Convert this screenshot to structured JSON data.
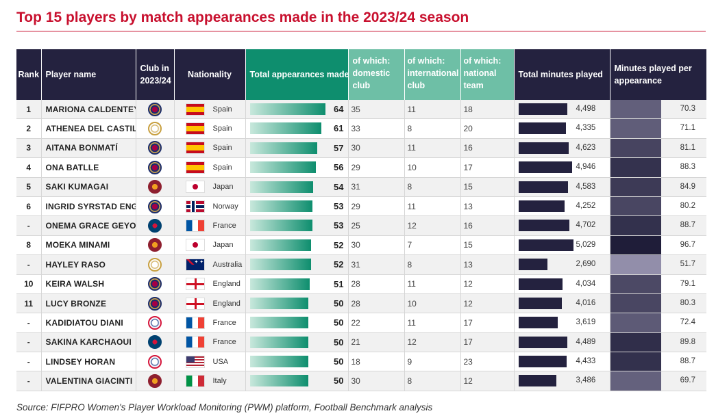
{
  "title": "Top 15 players by match appearances made in the 2023/24 season",
  "source": "Source: FIFPRO Women's Player Workload Monitoring (PWM) platform, Football Benchmark analysis",
  "headers": {
    "rank": "Rank",
    "player": "Player name",
    "club": "Club in 2023/24",
    "nationality": "Nationality",
    "total": "Total appearances made",
    "domestic": "of which: domestic club",
    "international": "of which: international club",
    "national": "of which: national team",
    "minutes": "Total minutes played",
    "mpa": "Minutes played per appearance"
  },
  "colors": {
    "title": "#c8102e",
    "navy": "#24223f",
    "teal": "#0e8e6e",
    "light_teal": "#6ebfa6"
  },
  "chart_data": {
    "type": "table",
    "title": "Top 15 players by match appearances made in the 2023/24 season",
    "rows": [
      {
        "rank": "1",
        "name": "MARIONA CALDENTEY",
        "club": "barca-crest-icon",
        "nationality": "Spain",
        "flag": "es",
        "total": 64,
        "domestic": 35,
        "international": 11,
        "national": 18,
        "minutes": 4498,
        "minutes_label": "4,498",
        "mpa": 70.3,
        "mpa_label": "70.3"
      },
      {
        "rank": "2",
        "name": "ATHENEA DEL CASTILLO",
        "club": "real-madrid-crest-icon",
        "nationality": "Spain",
        "flag": "es",
        "total": 61,
        "domestic": 33,
        "international": 8,
        "national": 20,
        "minutes": 4335,
        "minutes_label": "4,335",
        "mpa": 71.1,
        "mpa_label": "71.1"
      },
      {
        "rank": "3",
        "name": "AITANA BONMATÍ",
        "club": "barca-crest-icon",
        "nationality": "Spain",
        "flag": "es",
        "total": 57,
        "domestic": 30,
        "international": 11,
        "national": 16,
        "minutes": 4623,
        "minutes_label": "4,623",
        "mpa": 81.1,
        "mpa_label": "81.1"
      },
      {
        "rank": "4",
        "name": "ONA BATLLE",
        "club": "barca-crest-icon",
        "nationality": "Spain",
        "flag": "es",
        "total": 56,
        "domestic": 29,
        "international": 10,
        "national": 17,
        "minutes": 4946,
        "minutes_label": "4,946",
        "mpa": 88.3,
        "mpa_label": "88.3"
      },
      {
        "rank": "5",
        "name": "SAKI KUMAGAI",
        "club": "roma-crest-icon",
        "nationality": "Japan",
        "flag": "jp",
        "total": 54,
        "domestic": 31,
        "international": 8,
        "national": 15,
        "minutes": 4583,
        "minutes_label": "4,583",
        "mpa": 84.9,
        "mpa_label": "84.9"
      },
      {
        "rank": "6",
        "name": "INGRID SYRSTAD ENGEN",
        "club": "barca-crest-icon",
        "nationality": "Norway",
        "flag": "no",
        "total": 53,
        "domestic": 29,
        "international": 11,
        "national": 13,
        "minutes": 4252,
        "minutes_label": "4,252",
        "mpa": 80.2,
        "mpa_label": "80.2"
      },
      {
        "rank": "-",
        "name": "ONEMA GRACE GEYORO",
        "club": "psg-crest-icon",
        "nationality": "France",
        "flag": "fr",
        "total": 53,
        "domestic": 25,
        "international": 12,
        "national": 16,
        "minutes": 4702,
        "minutes_label": "4,702",
        "mpa": 88.7,
        "mpa_label": "88.7"
      },
      {
        "rank": "8",
        "name": "MOEKA MINAMI",
        "club": "roma-crest-icon",
        "nationality": "Japan",
        "flag": "jp",
        "total": 52,
        "domestic": 30,
        "international": 7,
        "national": 15,
        "minutes": 5029,
        "minutes_label": "5,029",
        "mpa": 96.7,
        "mpa_label": "96.7"
      },
      {
        "rank": "-",
        "name": "HAYLEY RASO",
        "club": "real-madrid-crest-icon",
        "nationality": "Australia",
        "flag": "au",
        "total": 52,
        "domestic": 31,
        "international": 8,
        "national": 13,
        "minutes": 2690,
        "minutes_label": "2,690",
        "mpa": 51.7,
        "mpa_label": "51.7"
      },
      {
        "rank": "10",
        "name": "KEIRA WALSH",
        "club": "barca-crest-icon",
        "nationality": "England",
        "flag": "en",
        "total": 51,
        "domestic": 28,
        "international": 11,
        "national": 12,
        "minutes": 4034,
        "minutes_label": "4,034",
        "mpa": 79.1,
        "mpa_label": "79.1"
      },
      {
        "rank": "11",
        "name": "LUCY BRONZE",
        "club": "barca-crest-icon",
        "nationality": "England",
        "flag": "en",
        "total": 50,
        "domestic": 28,
        "international": 10,
        "national": 12,
        "minutes": 4016,
        "minutes_label": "4,016",
        "mpa": 80.3,
        "mpa_label": "80.3"
      },
      {
        "rank": "-",
        "name": "KADIDIATOU DIANI",
        "club": "ol-crest-icon",
        "nationality": "France",
        "flag": "fr",
        "total": 50,
        "domestic": 22,
        "international": 11,
        "national": 17,
        "minutes": 3619,
        "minutes_label": "3,619",
        "mpa": 72.4,
        "mpa_label": "72.4"
      },
      {
        "rank": "-",
        "name": "SAKINA KARCHAOUI",
        "club": "psg-crest-icon",
        "nationality": "France",
        "flag": "fr",
        "total": 50,
        "domestic": 21,
        "international": 12,
        "national": 17,
        "minutes": 4489,
        "minutes_label": "4,489",
        "mpa": 89.8,
        "mpa_label": "89.8"
      },
      {
        "rank": "-",
        "name": "LINDSEY HORAN",
        "club": "ol-crest-icon",
        "nationality": "USA",
        "flag": "us",
        "total": 50,
        "domestic": 18,
        "international": 9,
        "national": 23,
        "minutes": 4433,
        "minutes_label": "4,433",
        "mpa": 88.7,
        "mpa_label": "88.7"
      },
      {
        "rank": "-",
        "name": "VALENTINA GIACINTI",
        "club": "roma-crest-icon",
        "nationality": "Italy",
        "flag": "it",
        "total": 50,
        "domestic": 30,
        "international": 8,
        "national": 12,
        "minutes": 3486,
        "minutes_label": "3,486",
        "mpa": 69.7,
        "mpa_label": "69.7"
      }
    ]
  }
}
